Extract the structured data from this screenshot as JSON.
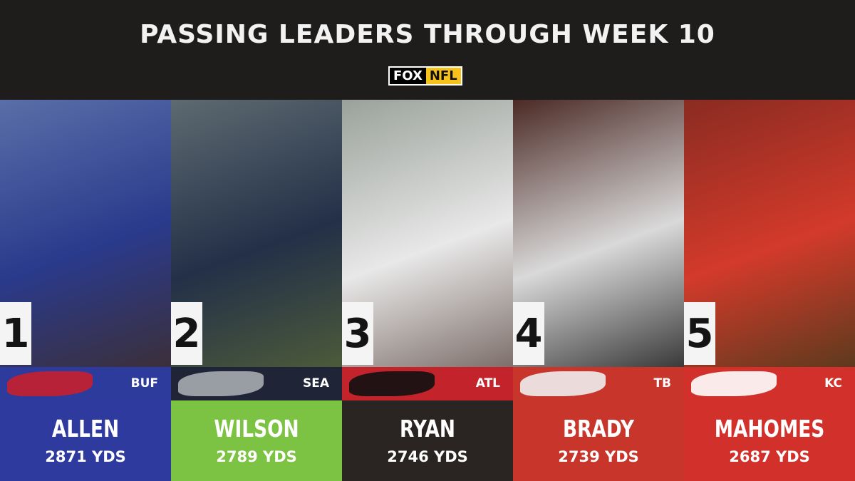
{
  "header": {
    "title": "PASSING LEADERS THROUGH WEEK 10",
    "logo": [
      "FOX",
      "NFL"
    ]
  },
  "players": [
    {
      "rank": "1",
      "team": "BUF",
      "name": "ALLEN",
      "stat": "2871 YDS"
    },
    {
      "rank": "2",
      "team": "SEA",
      "name": "WILSON",
      "stat": "2789 YDS"
    },
    {
      "rank": "3",
      "team": "ATL",
      "name": "RYAN",
      "stat": "2746 YDS"
    },
    {
      "rank": "4",
      "team": "TB",
      "name": "BRADY",
      "stat": "2739 YDS"
    },
    {
      "rank": "5",
      "team": "KC",
      "name": "MAHOMES",
      "stat": "2687 YDS"
    }
  ]
}
